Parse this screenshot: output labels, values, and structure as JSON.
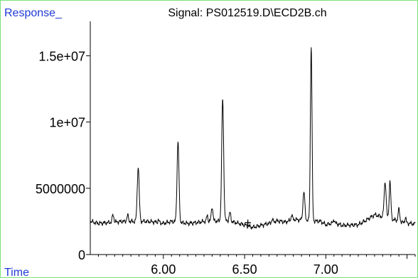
{
  "chart_data": {
    "type": "line",
    "title": "Signal: PS012519.D\\ECD2B.ch",
    "ylabel": "Response_",
    "xlabel": "Time",
    "xlim": [
      5.55,
      7.55
    ],
    "ylim": [
      0,
      17600000
    ],
    "xticks": [
      6.0,
      6.5,
      7.0
    ],
    "xtick_labels": [
      "6.00",
      "6.50",
      "7.00"
    ],
    "yticks": [
      0,
      5000000,
      10000000,
      15000000
    ],
    "ytick_labels": [
      "0",
      "5000000",
      "1e+07",
      "1.5e+07"
    ],
    "grid": false,
    "annotations": [
      {
        "text": "+",
        "x": 6.52,
        "y": 2400000
      }
    ],
    "baseline": [
      [
        5.55,
        2500000
      ],
      [
        5.6,
        2350000
      ],
      [
        5.65,
        2400000
      ],
      [
        5.7,
        2450000
      ],
      [
        5.75,
        2500000
      ],
      [
        5.9,
        2500000
      ],
      [
        5.95,
        2450000
      ],
      [
        6.0,
        2350000
      ],
      [
        6.05,
        2500000
      ],
      [
        6.15,
        2350000
      ],
      [
        6.2,
        2400000
      ],
      [
        6.25,
        2500000
      ],
      [
        6.4,
        2550000
      ],
      [
        6.48,
        2300000
      ],
      [
        6.55,
        2050000
      ],
      [
        6.6,
        2200000
      ],
      [
        6.65,
        2350000
      ],
      [
        6.7,
        2550000
      ],
      [
        6.75,
        2450000
      ],
      [
        6.8,
        2650000
      ],
      [
        6.97,
        2500000
      ],
      [
        7.0,
        2250000
      ],
      [
        7.05,
        2400000
      ],
      [
        7.1,
        2200000
      ],
      [
        7.2,
        2250000
      ],
      [
        7.25,
        2600000
      ],
      [
        7.3,
        3000000
      ],
      [
        7.4,
        2700000
      ],
      [
        7.48,
        2400000
      ],
      [
        7.55,
        2300000
      ]
    ],
    "peaks": [
      [
        5.69,
        3000000,
        0.005
      ],
      [
        5.78,
        2950000,
        0.005
      ],
      [
        5.845,
        6600000,
        0.006
      ],
      [
        5.97,
        2600000,
        0.004
      ],
      [
        6.09,
        8500000,
        0.006
      ],
      [
        6.27,
        2950000,
        0.004
      ],
      [
        6.3,
        3600000,
        0.005
      ],
      [
        6.365,
        11700000,
        0.006
      ],
      [
        6.41,
        3150000,
        0.005
      ],
      [
        6.67,
        2650000,
        0.004
      ],
      [
        6.79,
        3000000,
        0.004
      ],
      [
        6.865,
        4700000,
        0.006
      ],
      [
        6.91,
        15700000,
        0.005
      ],
      [
        7.05,
        2650000,
        0.004
      ],
      [
        7.365,
        5500000,
        0.006
      ],
      [
        7.395,
        5500000,
        0.005
      ],
      [
        7.45,
        3400000,
        0.005
      ],
      [
        7.49,
        2800000,
        0.004
      ]
    ]
  }
}
